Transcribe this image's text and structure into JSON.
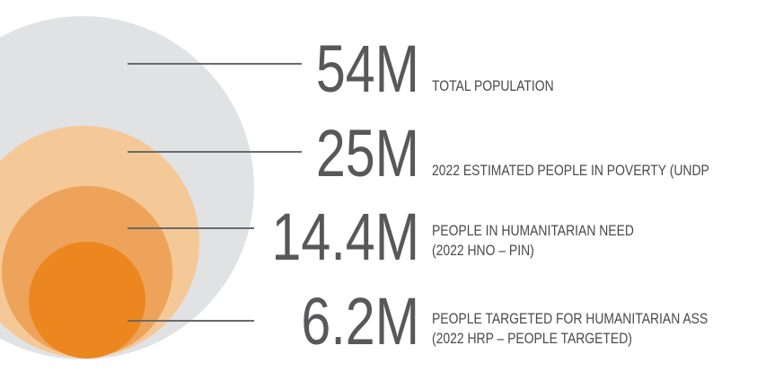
{
  "colors": {
    "total": "#e1e2e3",
    "poverty": "#f5c897",
    "need": "#eea35a",
    "targeted": "#ec861e",
    "line": "#6a6a6a",
    "text": "#58585a"
  },
  "items": [
    {
      "value": "54M",
      "label_lines": [
        "TOTAL POPULATION"
      ]
    },
    {
      "value": "25M",
      "label_lines": [
        "2022 ESTIMATED PEOPLE IN POVERTY (UNDP"
      ]
    },
    {
      "value": "14.4M",
      "label_lines": [
        "PEOPLE IN HUMANITARIAN NEED",
        "(2022 HNO – PIN)"
      ]
    },
    {
      "value": "6.2M",
      "label_lines": [
        "PEOPLE TARGETED FOR HUMANITARIAN ASS",
        "(2022 HRP – PEOPLE TARGETED)"
      ]
    }
  ]
}
